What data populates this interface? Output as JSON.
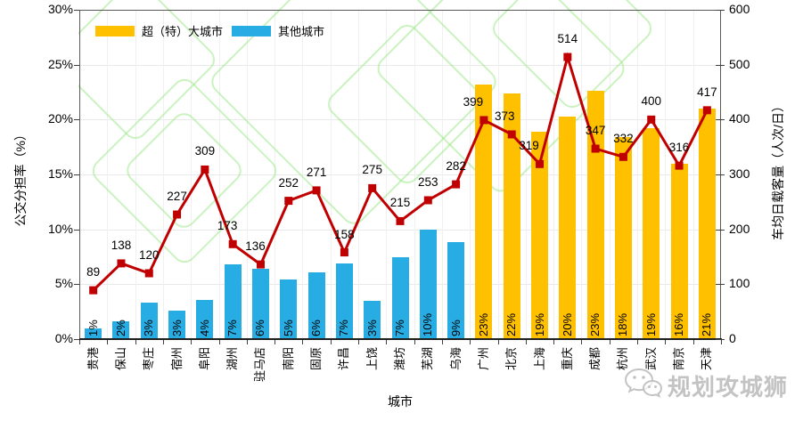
{
  "watermark": {
    "text": "规划攻城狮"
  },
  "chart_data": {
    "type": "bar+line",
    "categories": [
      "贵港",
      "保山",
      "枣庄",
      "宿州",
      "阜阳",
      "湖州",
      "驻马店",
      "南阳",
      "固原",
      "许昌",
      "上饶",
      "潍坊",
      "芜湖",
      "乌海",
      "广州",
      "北京",
      "上海",
      "重庆",
      "成都",
      "杭州",
      "武汉",
      "南京",
      "天津"
    ],
    "series": [
      {
        "name": "公交分担率",
        "type": "bar",
        "axis": "left",
        "values": [
          1.0,
          1.6,
          3.3,
          2.6,
          3.6,
          6.8,
          6.4,
          5.4,
          6.1,
          6.9,
          3.5,
          7.5,
          10.0,
          8.8,
          23.2,
          22.4,
          18.9,
          20.3,
          22.6,
          18.4,
          19.2,
          16.0,
          21.0
        ],
        "labels": [
          "1%",
          "2%",
          "3%",
          "3%",
          "4%",
          "7%",
          "6%",
          "5%",
          "6%",
          "7%",
          "3%",
          "7%",
          "10%",
          "9%",
          "23%",
          "22%",
          "19%",
          "20%",
          "23%",
          "18%",
          "19%",
          "16%",
          "21%"
        ],
        "groups": [
          "other",
          "other",
          "other",
          "other",
          "other",
          "other",
          "other",
          "other",
          "other",
          "other",
          "other",
          "other",
          "other",
          "other",
          "mega",
          "mega",
          "mega",
          "mega",
          "mega",
          "mega",
          "mega",
          "mega",
          "mega"
        ],
        "group_colors": {
          "mega": "#FFC000",
          "other": "#27ADE4"
        }
      },
      {
        "name": "车均日载客量",
        "type": "line",
        "axis": "right",
        "color": "#C00000",
        "values": [
          89,
          138,
          120,
          227,
          309,
          173,
          136,
          252,
          271,
          158,
          275,
          215,
          253,
          282,
          399,
          373,
          319,
          514,
          347,
          332,
          400,
          316,
          417
        ],
        "label_dx": {
          "5": -6,
          "6": -6,
          "14": -12,
          "15": -8,
          "16": -12
        }
      }
    ],
    "legend": {
      "position": "top",
      "items": [
        {
          "label": "超（特）大城市",
          "color": "#FFC000"
        },
        {
          "label": "其他城市",
          "color": "#27ADE4"
        }
      ]
    },
    "axes": {
      "left": {
        "title": "公交分担率（%）",
        "min": 0,
        "max": 30,
        "ticks": [
          "0%",
          "5%",
          "10%",
          "15%",
          "20%",
          "25%",
          "30%"
        ]
      },
      "right": {
        "title": "车均日载客量（人次/日）",
        "min": 0,
        "max": 600,
        "ticks": [
          "0",
          "100",
          "200",
          "300",
          "400",
          "500",
          "600"
        ]
      },
      "x": {
        "title": "城市"
      }
    },
    "grid": true
  }
}
